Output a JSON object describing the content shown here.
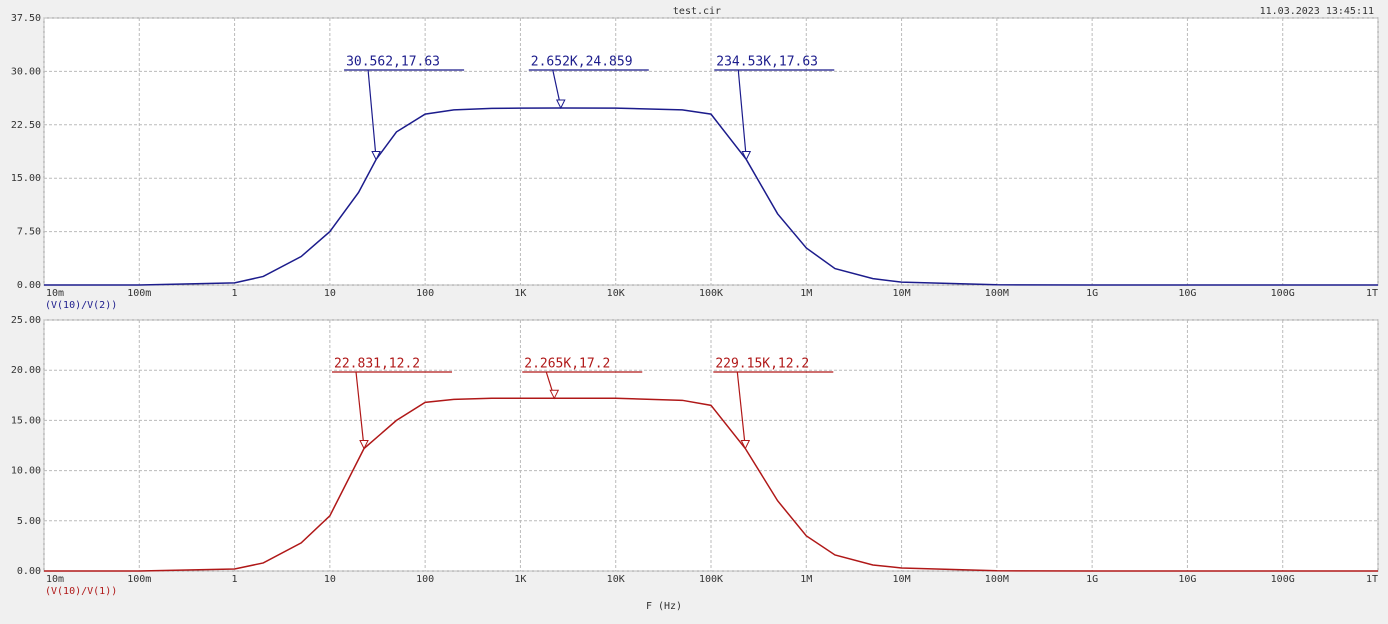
{
  "title": "test.cir",
  "timestamp": "11.03.2023 13:45:11",
  "chart_data": [
    {
      "type": "line",
      "xscale": "log",
      "grid": true,
      "xlim": [
        0.01,
        1000000000000.0
      ],
      "xticks": [
        {
          "value": 0.01,
          "label": "10m"
        },
        {
          "value": 0.1,
          "label": "100m"
        },
        1,
        10,
        100,
        {
          "value": 1000,
          "label": "1K"
        },
        {
          "value": 10000,
          "label": "10K"
        },
        {
          "value": 100000,
          "label": "100K"
        },
        {
          "value": 1000000,
          "label": "1M"
        },
        {
          "value": 10000000,
          "label": "10M"
        },
        {
          "value": 100000000,
          "label": "100M"
        },
        {
          "value": 1000000000,
          "label": "1G"
        },
        {
          "value": 10000000000,
          "label": "10G"
        },
        {
          "value": 100000000000,
          "label": "100G"
        },
        {
          "value": 1000000000000,
          "label": "1T"
        }
      ],
      "ylim": [
        0,
        37.5
      ],
      "yticks": [
        {
          "value": 0,
          "label": "0.00"
        },
        {
          "value": 7.5,
          "label": "7.50"
        },
        {
          "value": 15,
          "label": "15.00"
        },
        {
          "value": 22.5,
          "label": "22.50"
        },
        {
          "value": 30,
          "label": "30.00"
        },
        {
          "value": 37.5,
          "label": "37.50"
        }
      ],
      "x": [
        0.01,
        0.1,
        1,
        2,
        5,
        10,
        20,
        30.562,
        50,
        100,
        200,
        500,
        1000,
        2652,
        10000,
        50000,
        100000,
        234530,
        500000,
        1000000,
        2000000,
        5000000,
        10000000,
        100000000,
        1000000000,
        1000000000000
      ],
      "series": [
        {
          "name": "(V(10)/V(2))",
          "color": "#1c1c8c",
          "values": [
            0,
            0,
            0.3,
            1.2,
            4,
            7.5,
            13,
            17.63,
            21.5,
            24,
            24.6,
            24.8,
            24.85,
            24.859,
            24.85,
            24.6,
            24,
            17.63,
            10,
            5.2,
            2.3,
            0.9,
            0.4,
            0.03,
            0,
            0
          ]
        }
      ],
      "annotations": [
        {
          "label": "30.562,17.63",
          "x": 30.562,
          "y": 17.63
        },
        {
          "label": "2.652K,24.859",
          "x": 2652,
          "y": 24.859
        },
        {
          "label": "234.53K,17.63",
          "x": 234530,
          "y": 17.63
        }
      ]
    },
    {
      "type": "line",
      "xscale": "log",
      "grid": true,
      "xlabel": "F (Hz)",
      "xlim": [
        0.01,
        1000000000000.0
      ],
      "xticks": [
        {
          "value": 0.01,
          "label": "10m"
        },
        {
          "value": 0.1,
          "label": "100m"
        },
        1,
        10,
        100,
        {
          "value": 1000,
          "label": "1K"
        },
        {
          "value": 10000,
          "label": "10K"
        },
        {
          "value": 100000,
          "label": "100K"
        },
        {
          "value": 1000000,
          "label": "1M"
        },
        {
          "value": 10000000,
          "label": "10M"
        },
        {
          "value": 100000000,
          "label": "100M"
        },
        {
          "value": 1000000000,
          "label": "1G"
        },
        {
          "value": 10000000000,
          "label": "10G"
        },
        {
          "value": 100000000000,
          "label": "100G"
        },
        {
          "value": 1000000000000,
          "label": "1T"
        }
      ],
      "ylim": [
        0,
        25
      ],
      "yticks": [
        {
          "value": 0,
          "label": "0.00"
        },
        {
          "value": 5,
          "label": "5.00"
        },
        {
          "value": 10,
          "label": "10.00"
        },
        {
          "value": 15,
          "label": "15.00"
        },
        {
          "value": 20,
          "label": "20.00"
        },
        {
          "value": 25,
          "label": "25.00"
        }
      ],
      "x": [
        0.01,
        0.1,
        1,
        2,
        5,
        10,
        22.831,
        50,
        100,
        200,
        500,
        1000,
        2265,
        10000,
        50000,
        100000,
        229150,
        500000,
        1000000,
        2000000,
        5000000,
        10000000,
        100000000,
        1000000000,
        1000000000000
      ],
      "series": [
        {
          "name": "(V(10)/V(1))",
          "color": "#b01818",
          "values": [
            0,
            0,
            0.2,
            0.8,
            2.8,
            5.5,
            12.2,
            15,
            16.8,
            17.1,
            17.2,
            17.2,
            17.2,
            17.2,
            17,
            16.5,
            12.2,
            7,
            3.5,
            1.6,
            0.6,
            0.3,
            0.02,
            0,
            0
          ]
        }
      ],
      "annotations": [
        {
          "label": "22.831,12.2",
          "x": 22.831,
          "y": 12.2
        },
        {
          "label": "2.265K,17.2",
          "x": 2265,
          "y": 17.2
        },
        {
          "label": "229.15K,12.2",
          "x": 229150,
          "y": 12.2
        }
      ]
    }
  ]
}
